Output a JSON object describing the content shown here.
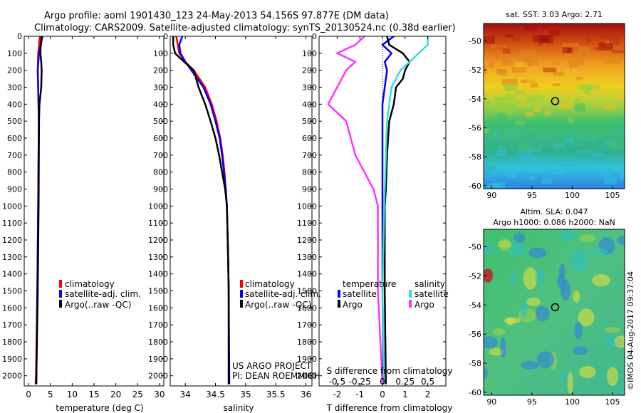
{
  "header": {
    "line1": "Argo profile: aoml 1901430_123 24-May-2013 54.156S 97.877E (DM data)",
    "line2": "Climatology: CARS2009. Satellite-adjusted climatology: synTS_20130524.nc (0.38d earlier)"
  },
  "colors": {
    "climatology": "#ff0000",
    "satellite": "#0000ff",
    "argo": "#000000",
    "argo_salinity_diff": "#ff33ff",
    "satellite_salinity_diff": "#33dddd"
  },
  "depth_ticks": [
    0,
    100,
    200,
    300,
    400,
    500,
    600,
    700,
    800,
    900,
    1000,
    1100,
    1200,
    1300,
    1400,
    1500,
    1600,
    1700,
    1800,
    1900,
    2000
  ],
  "chart_data": [
    {
      "type": "line",
      "name": "temperature-profile",
      "xlabel": "temperature (deg C)",
      "xlim": [
        -1,
        31
      ],
      "xticks": [
        0,
        5,
        10,
        15,
        20,
        25,
        30
      ],
      "ylim": [
        2060,
        0
      ],
      "legend": [
        "climatology",
        "satellite-adj. clim.",
        "Argo(..raw -QC)"
      ],
      "series": [
        {
          "key": "climatology",
          "depth": [
            0,
            100,
            200,
            300,
            500,
            1000,
            1500,
            2000,
            2050
          ],
          "values": [
            2.6,
            2.2,
            2.1,
            2.2,
            2.35,
            2.2,
            2.0,
            1.7,
            1.6
          ]
        },
        {
          "key": "satellite",
          "depth": [
            0,
            50,
            100,
            200,
            300,
            500,
            1000,
            1500,
            2000,
            2050
          ],
          "values": [
            3.2,
            2.8,
            2.4,
            2.1,
            2.2,
            2.35,
            2.2,
            2.0,
            1.8,
            1.7
          ]
        },
        {
          "key": "argo",
          "depth": [
            0,
            50,
            100,
            150,
            200,
            300,
            400,
            500,
            1000,
            1500,
            2000,
            2050
          ],
          "values": [
            3.0,
            2.8,
            2.7,
            2.9,
            3.0,
            2.9,
            2.5,
            2.4,
            2.3,
            2.1,
            1.8,
            1.8
          ]
        }
      ]
    },
    {
      "type": "line",
      "name": "salinity-profile",
      "xlabel": "salinity",
      "xlim": [
        33.75,
        36.1
      ],
      "xticks": [
        34,
        34.5,
        35,
        35.5,
        36
      ],
      "xtick_labels": [
        "34",
        "34.5",
        "35",
        "35.5",
        "36"
      ],
      "ylim": [
        2060,
        0
      ],
      "legend": [
        "climatology",
        "satellite-adj. clim.",
        "Argo(..raw -QC)"
      ],
      "credit": [
        "US ARGO PROJECT",
        "PI: DEAN ROEMMICH"
      ],
      "series": [
        {
          "key": "climatology",
          "depth": [
            0,
            100,
            150,
            200,
            300,
            400,
            500,
            600,
            700,
            800,
            900,
            1000,
            1300,
            1500,
            2050
          ],
          "values": [
            33.85,
            33.9,
            34.0,
            34.14,
            34.33,
            34.44,
            34.52,
            34.58,
            34.62,
            34.65,
            34.67,
            34.69,
            34.71,
            34.72,
            34.72
          ]
        },
        {
          "key": "satellite",
          "depth": [
            0,
            50,
            100,
            150,
            200,
            300,
            400,
            500,
            600,
            700,
            800,
            900,
            1000,
            1300,
            1500,
            2050
          ],
          "values": [
            33.95,
            33.9,
            33.92,
            34.0,
            34.1,
            34.3,
            34.42,
            34.5,
            34.57,
            34.61,
            34.64,
            34.67,
            34.69,
            34.71,
            34.72,
            34.73
          ]
        },
        {
          "key": "argo",
          "depth": [
            0,
            50,
            100,
            150,
            200,
            300,
            400,
            500,
            600,
            700,
            800,
            900,
            1000,
            1300,
            1500,
            2050
          ],
          "values": [
            33.8,
            33.8,
            33.83,
            33.98,
            34.14,
            34.22,
            34.33,
            34.42,
            34.5,
            34.56,
            34.61,
            34.66,
            34.69,
            34.71,
            34.72,
            34.72
          ]
        }
      ]
    },
    {
      "type": "line",
      "name": "difference-profile",
      "xlabel": "T difference from climatology",
      "xlabel_top": "S difference from climatology",
      "xlim": [
        -2.8,
        2.8
      ],
      "xticks": [
        -2,
        -1,
        0,
        1,
        2
      ],
      "top_ticks": [
        -0.5,
        -0.25,
        0,
        0.25,
        0.5
      ],
      "top_tick_labels": [
        "-0.5",
        "-0.25",
        "0",
        "0.25",
        "0.5"
      ],
      "ylim": [
        2060,
        0
      ],
      "legend_headers": [
        "temperature",
        "salinity"
      ],
      "legend_temperature": [
        "satellite",
        "Argo"
      ],
      "legend_salinity": [
        "satellite",
        "Argo"
      ],
      "series": [
        {
          "key": "satellite",
          "depth": [
            0,
            50,
            100,
            150,
            200,
            300,
            400,
            500,
            1000,
            1500,
            2050
          ],
          "values": [
            0.5,
            0.0,
            0.4,
            0.1,
            0.2,
            0.1,
            0.0,
            0.0,
            0.0,
            0.0,
            0.05
          ]
        },
        {
          "key": "argo",
          "depth": [
            0,
            50,
            100,
            150,
            200,
            250,
            300,
            400,
            500,
            700,
            900,
            1000,
            1500,
            2050
          ],
          "values": [
            0.2,
            0.3,
            0.9,
            1.2,
            1.0,
            0.9,
            0.6,
            0.5,
            0.3,
            0.2,
            0.15,
            0.1,
            0.1,
            0.15
          ]
        },
        {
          "key": "satellite_salinity",
          "depth": [
            0,
            50,
            100,
            200,
            300,
            500,
            1000,
            1500,
            2050
          ],
          "values": [
            0.5,
            0.5,
            0.4,
            0.2,
            0.1,
            0.05,
            0.02,
            0.0,
            0.02
          ]
        },
        {
          "key": "argo_salinity",
          "depth": [
            0,
            50,
            100,
            150,
            200,
            300,
            400,
            500,
            700,
            900,
            1000,
            1500,
            2050
          ],
          "values": [
            -0.2,
            -0.3,
            -0.5,
            -0.3,
            -0.4,
            -0.5,
            -0.6,
            -0.4,
            -0.3,
            -0.1,
            -0.05,
            -0.05,
            0.0
          ]
        }
      ]
    },
    {
      "type": "heatmap",
      "name": "sst-map",
      "title": "sat. SST: 3.03 Argo: 2.71",
      "xlim": [
        89,
        106.5
      ],
      "ylim": [
        -60.2,
        -48.8
      ],
      "xticks": [
        90,
        95,
        100,
        105
      ],
      "yticks": [
        -50,
        -52,
        -54,
        -56,
        -58,
        -60
      ],
      "marker": {
        "lon": 97.877,
        "lat": -54.156
      }
    },
    {
      "type": "heatmap",
      "name": "sla-map",
      "title": "Altim. SLA: 0.047",
      "subtitle": "Argo h1000: 0.086 h2000: NaN",
      "xlim": [
        89,
        106.5
      ],
      "ylim": [
        -60.2,
        -48.8
      ],
      "xticks": [
        90,
        95,
        100,
        105
      ],
      "yticks": [
        -50,
        -52,
        -54,
        -56,
        -58,
        -60
      ],
      "marker": {
        "lon": 97.877,
        "lat": -54.156
      }
    }
  ],
  "watermark": "©IMOS 04-Aug-2017 09:37:04"
}
